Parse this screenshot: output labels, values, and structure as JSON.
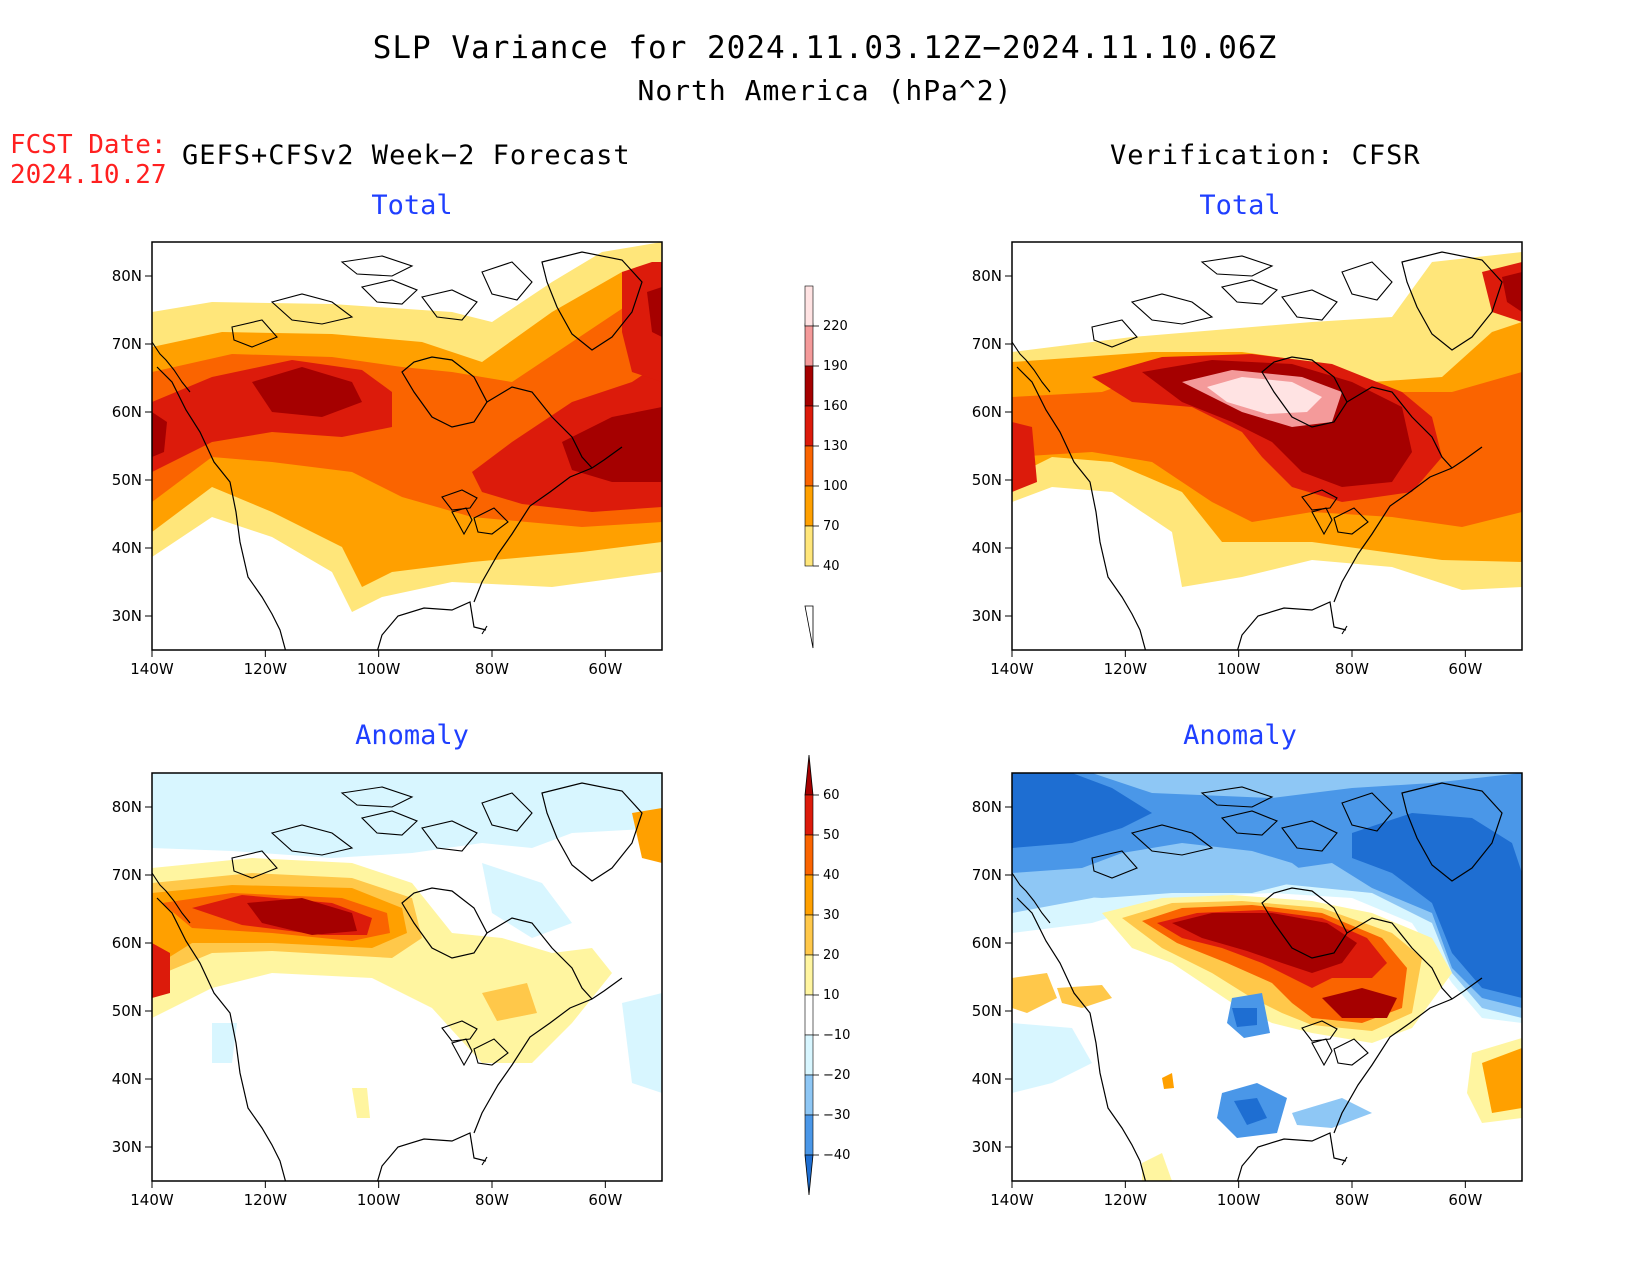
{
  "header": {
    "title": "SLP Variance for 2024.11.03.12Z−2024.11.10.06Z",
    "subtitle": "North America (hPa^2)",
    "fcst_label": "FCST Date:",
    "fcst_date": "2024.10.27",
    "left_column_title": "GEFS+CFSv2 Week−2 Forecast",
    "right_column_title": "Verification: CFSR"
  },
  "panels": [
    {
      "id": "forecast-total",
      "label": "Total"
    },
    {
      "id": "verification-total",
      "label": "Total"
    },
    {
      "id": "forecast-anomaly",
      "label": "Anomaly"
    },
    {
      "id": "verification-anomaly",
      "label": "Anomaly"
    }
  ],
  "axes": {
    "lon_ticks": [
      "140W",
      "120W",
      "100W",
      "80W",
      "60W"
    ],
    "lat_ticks": [
      "80N",
      "70N",
      "60N",
      "50N",
      "40N",
      "30N"
    ],
    "lon_range": [
      -140,
      -50
    ],
    "lat_range": [
      25,
      85
    ]
  },
  "colorbars": {
    "total": {
      "levels": [
        "220",
        "190",
        "160",
        "130",
        "100",
        "70",
        "40"
      ],
      "colors": [
        "#ffe3e3",
        "#f49a9a",
        "#a50000",
        "#dc1b0b",
        "#fa6400",
        "#ffa000",
        "#ffe67a"
      ]
    },
    "anomaly": {
      "levels": [
        "60",
        "50",
        "40",
        "30",
        "20",
        "10",
        "−10",
        "−20",
        "−30",
        "−40"
      ],
      "colors": [
        "#a50000",
        "#dc1b0b",
        "#fa6400",
        "#ffa000",
        "#ffc84a",
        "#fff5a0",
        "#ffffff",
        "#d8f6ff",
        "#8ec7f5",
        "#4a97e8",
        "#1e6ed2"
      ]
    }
  }
}
